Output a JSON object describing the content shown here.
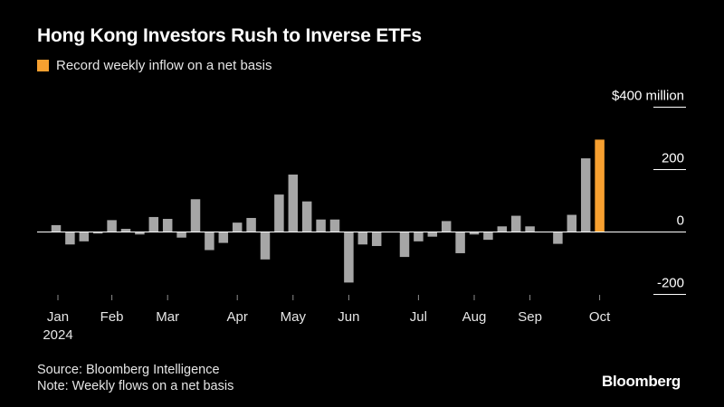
{
  "title": "Hong Kong Investors Rush to Inverse ETFs",
  "legend_label": "Record weekly inflow on a net basis",
  "footer": {
    "source": "Source: Bloomberg Intelligence",
    "note": "Note: Weekly flows on a net basis"
  },
  "brand": "Bloomberg",
  "colors": {
    "background": "#000000",
    "bar": "#a6a6a6",
    "highlight": "#f7a030",
    "text": "#ffffff",
    "muted": "#8c8c8c"
  },
  "chart_data": {
    "type": "bar",
    "title": "Hong Kong Investors Rush to Inverse ETFs",
    "ylabel": "$400 million",
    "ylim": [
      -200,
      400
    ],
    "yticks": [
      {
        "value": 400,
        "label": "$400 million"
      },
      {
        "value": 200,
        "label": "200"
      },
      {
        "value": 0,
        "label": "0"
      },
      {
        "value": -200,
        "label": "-200"
      }
    ],
    "x_ticks": [
      {
        "label": "Jan",
        "week": 0,
        "sublabel": "2024"
      },
      {
        "label": "Feb",
        "week": 4
      },
      {
        "label": "Mar",
        "week": 8
      },
      {
        "label": "Apr",
        "week": 13
      },
      {
        "label": "May",
        "week": 17
      },
      {
        "label": "Jun",
        "week": 21
      },
      {
        "label": "Jul",
        "week": 26
      },
      {
        "label": "Aug",
        "week": 30
      },
      {
        "label": "Sep",
        "week": 34
      },
      {
        "label": "Oct",
        "week": 39
      }
    ],
    "grid": false,
    "series": [
      {
        "values": [
          22,
          -40,
          -30,
          -5,
          38,
          10,
          -8,
          48,
          42,
          -18,
          105,
          -58,
          -35,
          30,
          45,
          -88,
          120,
          184,
          98,
          40,
          40,
          -162,
          -40,
          -45,
          0,
          -80,
          -30,
          -15,
          35,
          -68,
          -8,
          -25,
          18,
          52,
          18,
          0,
          -38,
          55,
          236,
          296
        ],
        "highlight_index": 39
      }
    ]
  }
}
